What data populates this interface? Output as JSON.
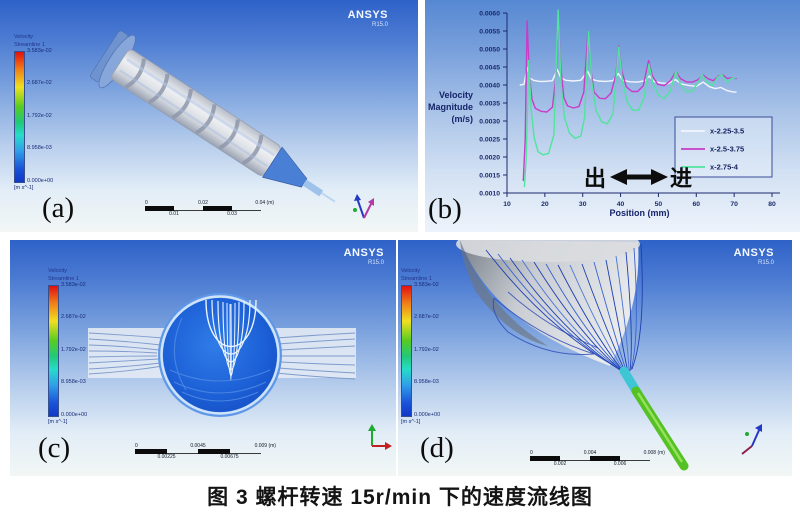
{
  "caption": "图 3 螺杆转速 15r/min 下的速度流线图",
  "ansys_logo": {
    "name": "ANSYS",
    "version": "R15.0"
  },
  "colorbar": {
    "title_line1": "Velocity",
    "title_line2": "Streamline 1",
    "labels": [
      "3.583e-02",
      "2.687e-02",
      "1.792e-02",
      "8.958e-03",
      "0.000e+00"
    ],
    "units": "[m s^-1]"
  },
  "panels": {
    "a": {
      "label": "(a)",
      "scale": {
        "zero": "0",
        "mid": "0.02",
        "end": "0.04 (m)",
        "q1": "0.01",
        "q3": "0.03"
      }
    },
    "b": {
      "label": "(b)"
    },
    "c": {
      "label": "(c)",
      "scale": {
        "zero": "0",
        "mid": "0.0045",
        "end": "0.009 (m)",
        "q1": "0.00225",
        "q3": "0.00675"
      }
    },
    "d": {
      "label": "(d)",
      "scale": {
        "zero": "0",
        "mid": "0.004",
        "end": "0.008 (m)",
        "q1": "0.002",
        "q3": "0.006"
      }
    }
  },
  "chart_data": {
    "type": "line",
    "title": "",
    "xlabel": "Position (mm)",
    "ylabel": "Velocity Magnitude (m/s)",
    "ylabel_lines": [
      "Velocity",
      "Magnitude",
      "(m/s)"
    ],
    "xlim": [
      10,
      80
    ],
    "ylim": [
      0.001,
      0.006
    ],
    "xticks": [
      10,
      20,
      30,
      40,
      50,
      60,
      70,
      80
    ],
    "yticks": [
      "0.0010",
      "0.0015",
      "0.0020",
      "0.0025",
      "0.0030",
      "0.0035",
      "0.0040",
      "0.0045",
      "0.0050",
      "0.0055",
      "0.0060"
    ],
    "grid": false,
    "legend_position": "right-middle",
    "annotation": {
      "out_label": "出",
      "in_label": "进",
      "arrow": "double-headed"
    },
    "series": [
      {
        "name": "x-2.25-3.5",
        "color": "#f3f5ff",
        "points": [
          [
            13.5,
            0.004
          ],
          [
            14.5,
            0.00402
          ],
          [
            15.3,
            0.00448
          ],
          [
            16,
            0.0042
          ],
          [
            17,
            0.00413
          ],
          [
            18.5,
            0.0041
          ],
          [
            20,
            0.0041
          ],
          [
            22,
            0.00412
          ],
          [
            23.3,
            0.00443
          ],
          [
            24.2,
            0.0042
          ],
          [
            25.5,
            0.00413
          ],
          [
            27.5,
            0.00411
          ],
          [
            29.5,
            0.00413
          ],
          [
            31.3,
            0.00438
          ],
          [
            32.3,
            0.00416
          ],
          [
            34,
            0.00411
          ],
          [
            36,
            0.0041
          ],
          [
            38,
            0.00412
          ],
          [
            39.4,
            0.00432
          ],
          [
            40.5,
            0.00414
          ],
          [
            42.5,
            0.00409
          ],
          [
            44.5,
            0.00408
          ],
          [
            46.5,
            0.00412
          ],
          [
            47.6,
            0.00425
          ],
          [
            48.8,
            0.0041
          ],
          [
            50.5,
            0.00406
          ],
          [
            52.5,
            0.00404
          ],
          [
            54.5,
            0.00415
          ],
          [
            56,
            0.00403
          ],
          [
            58,
            0.00399
          ],
          [
            60,
            0.00396
          ],
          [
            61.8,
            0.00408
          ],
          [
            63.5,
            0.00395
          ],
          [
            65,
            0.0039
          ],
          [
            66.5,
            0.00393
          ],
          [
            68,
            0.00385
          ],
          [
            69.5,
            0.00381
          ],
          [
            70.5,
            0.0038
          ]
        ]
      },
      {
        "name": "x-2.5-3.75",
        "color": "#c83cc8",
        "points": [
          [
            14.3,
            0.00135
          ],
          [
            14.8,
            0.0025
          ],
          [
            15.3,
            0.00578
          ],
          [
            15.9,
            0.0043
          ],
          [
            16.6,
            0.0036
          ],
          [
            17.5,
            0.00335
          ],
          [
            19,
            0.00327
          ],
          [
            20.5,
            0.00325
          ],
          [
            22,
            0.00338
          ],
          [
            23,
            0.0043
          ],
          [
            23.5,
            0.00597
          ],
          [
            24.2,
            0.0045
          ],
          [
            25,
            0.00365
          ],
          [
            26,
            0.00342
          ],
          [
            27.5,
            0.00336
          ],
          [
            29,
            0.0034
          ],
          [
            30.3,
            0.0038
          ],
          [
            31.4,
            0.00548
          ],
          [
            32.2,
            0.0044
          ],
          [
            33,
            0.0038
          ],
          [
            34.5,
            0.00363
          ],
          [
            36,
            0.00362
          ],
          [
            37.5,
            0.00378
          ],
          [
            38.8,
            0.0043
          ],
          [
            39.5,
            0.00508
          ],
          [
            40.3,
            0.0044
          ],
          [
            41.5,
            0.00395
          ],
          [
            43,
            0.00382
          ],
          [
            44.5,
            0.00382
          ],
          [
            46,
            0.00398
          ],
          [
            47.4,
            0.00468
          ],
          [
            48.4,
            0.00425
          ],
          [
            49.8,
            0.00402
          ],
          [
            51.5,
            0.00398
          ],
          [
            53.2,
            0.00412
          ],
          [
            54.6,
            0.00438
          ],
          [
            55.8,
            0.00418
          ],
          [
            57.5,
            0.00408
          ],
          [
            59,
            0.00408
          ],
          [
            60.5,
            0.00415
          ],
          [
            61.8,
            0.00428
          ],
          [
            63,
            0.00418
          ],
          [
            64.5,
            0.00412
          ],
          [
            65.8,
            0.00425
          ],
          [
            67,
            0.00428
          ],
          [
            68.2,
            0.00418
          ],
          [
            69.3,
            0.0042
          ],
          [
            70.5,
            0.00418
          ]
        ]
      },
      {
        "name": "x-2.75-4",
        "color": "#50e49c",
        "points": [
          [
            14.6,
            0.00118
          ],
          [
            15.1,
            0.002
          ],
          [
            15.7,
            0.00468
          ],
          [
            16.4,
            0.0033
          ],
          [
            17.2,
            0.00252
          ],
          [
            18.2,
            0.00215
          ],
          [
            19.5,
            0.00206
          ],
          [
            21,
            0.0021
          ],
          [
            22.4,
            0.00262
          ],
          [
            23.5,
            0.00608
          ],
          [
            24.3,
            0.004
          ],
          [
            25.2,
            0.0031
          ],
          [
            26.5,
            0.00266
          ],
          [
            28,
            0.00252
          ],
          [
            29.5,
            0.00258
          ],
          [
            30.5,
            0.0031
          ],
          [
            31.5,
            0.00548
          ],
          [
            32.4,
            0.00408
          ],
          [
            33.5,
            0.0033
          ],
          [
            35,
            0.00298
          ],
          [
            36.5,
            0.00292
          ],
          [
            38,
            0.0032
          ],
          [
            39.5,
            0.00505
          ],
          [
            40.5,
            0.00408
          ],
          [
            41.8,
            0.00352
          ],
          [
            43.2,
            0.0033
          ],
          [
            44.8,
            0.0033
          ],
          [
            46.2,
            0.00365
          ],
          [
            47.5,
            0.00458
          ],
          [
            48.6,
            0.00402
          ],
          [
            50,
            0.00372
          ],
          [
            51.6,
            0.00362
          ],
          [
            53.2,
            0.00385
          ],
          [
            54.6,
            0.00438
          ],
          [
            55.8,
            0.00402
          ],
          [
            57.3,
            0.00382
          ],
          [
            58.8,
            0.00382
          ],
          [
            60.2,
            0.00402
          ],
          [
            61.6,
            0.00428
          ],
          [
            62.8,
            0.00408
          ],
          [
            64.2,
            0.00398
          ],
          [
            65.6,
            0.00422
          ],
          [
            66.8,
            0.00428
          ],
          [
            68,
            0.00408
          ],
          [
            69.2,
            0.00418
          ],
          [
            70.3,
            0.0042
          ]
        ]
      }
    ]
  }
}
